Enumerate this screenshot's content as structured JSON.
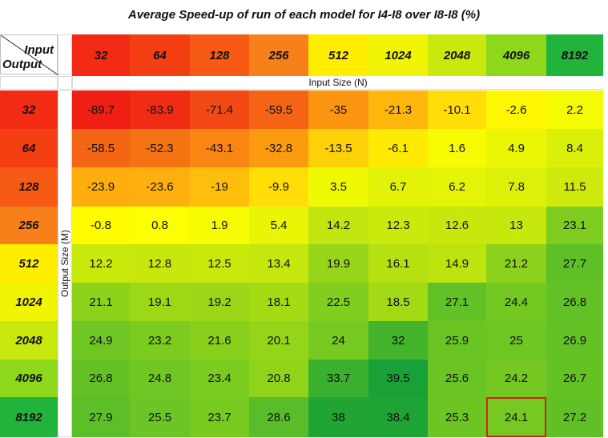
{
  "chart_data": {
    "type": "heatmap",
    "title": "Average Speed-up of run of each model for I4-I8 over I8-I8 (%)",
    "corner_input_label": "Input",
    "corner_output_label": "Output",
    "xlabel": "Input Size (N)",
    "ylabel": "Output Size (M)",
    "x_categories": [
      "32",
      "64",
      "128",
      "256",
      "512",
      "1024",
      "2048",
      "4096",
      "8192"
    ],
    "y_categories": [
      "32",
      "64",
      "128",
      "256",
      "512",
      "1024",
      "2048",
      "4096",
      "8192"
    ],
    "values": [
      [
        -89.7,
        -83.9,
        -71.4,
        -59.5,
        -35,
        -21.3,
        -10.1,
        -2.6,
        2.2
      ],
      [
        -58.5,
        -52.3,
        -43.1,
        -32.8,
        -13.5,
        -6.1,
        1.6,
        4.9,
        8.4
      ],
      [
        -23.9,
        -23.6,
        -19,
        -9.9,
        3.5,
        6.7,
        6.2,
        7.8,
        11.5
      ],
      [
        -0.8,
        0.8,
        1.9,
        5.4,
        14.2,
        12.3,
        12.6,
        13,
        23.1
      ],
      [
        12.2,
        12.8,
        12.5,
        13.4,
        19.9,
        16.1,
        14.9,
        21.2,
        27.7
      ],
      [
        21.1,
        19.1,
        19.2,
        18.1,
        22.5,
        18.5,
        27.1,
        24.4,
        26.8
      ],
      [
        24.9,
        23.2,
        21.6,
        20.1,
        24,
        32,
        25.9,
        25,
        26.9
      ],
      [
        26.8,
        24.8,
        23.4,
        20.8,
        33.7,
        39.5,
        25.6,
        24.2,
        26.7
      ],
      [
        27.9,
        25.5,
        23.7,
        28.6,
        38,
        38.4,
        25.3,
        24.1,
        27.2
      ]
    ],
    "header_colors": {
      "32": "#f32a14",
      "64": "#f43f13",
      "128": "#f75a14",
      "256": "#f7801a",
      "512": "#ffee00",
      "1024": "#f1f503",
      "2048": "#c9e90e",
      "4096": "#8ed81c",
      "8192": "#22b33c"
    },
    "highlighted_cell": {
      "row": "8192",
      "col": "4096",
      "color": "#d62020"
    }
  }
}
